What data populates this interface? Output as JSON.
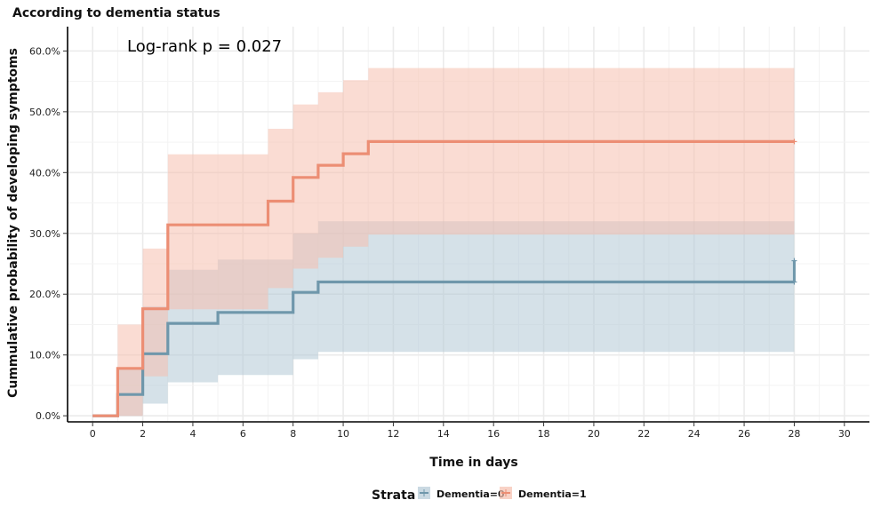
{
  "chart_data": {
    "type": "step",
    "title": "According to dementia status",
    "annotation": "Log-rank p = 0.027",
    "xlabel": "Time in days",
    "ylabel": "Cummulative probability of developing symptoms",
    "xlim": [
      -1,
      31
    ],
    "ylim": [
      -0.01,
      0.64
    ],
    "x_ticks": [
      0,
      2,
      4,
      6,
      8,
      10,
      12,
      14,
      16,
      18,
      20,
      22,
      24,
      26,
      28,
      30
    ],
    "y_ticks": [
      0,
      0.1,
      0.2,
      0.3,
      0.4,
      0.5,
      0.6
    ],
    "y_tick_labels": [
      "0.0%",
      "10.0%",
      "20.0%",
      "30.0%",
      "40.0%",
      "50.0%",
      "60.0%"
    ],
    "grid": true,
    "legend": {
      "title": "Strata",
      "position": "bottom",
      "entries": [
        "Dementia=0",
        "Dementia=1"
      ]
    },
    "series": [
      {
        "name": "Dementia=0",
        "color": "#6f97ab",
        "fill_color": "#b3c9d6",
        "x": [
          0,
          1,
          2,
          3,
          5,
          8,
          9,
          28
        ],
        "y": [
          0,
          0.035,
          0.102,
          0.152,
          0.17,
          0.203,
          0.22,
          0.22
        ],
        "lower": [
          0,
          0,
          0.02,
          0.055,
          0.067,
          0.093,
          0.105,
          0.105
        ],
        "upper": [
          0,
          0.077,
          0.18,
          0.24,
          0.257,
          0.3,
          0.32,
          0.32
        ],
        "censor": [
          {
            "x": 28,
            "y": 0.22
          },
          {
            "x": 28,
            "y": 0.255
          }
        ],
        "end_jump": 0.255
      },
      {
        "name": "Dementia=1",
        "color": "#ec8e74",
        "fill_color": "#f5bfae",
        "x": [
          0,
          1,
          2,
          3,
          7,
          8,
          9,
          10,
          11,
          28
        ],
        "y": [
          0,
          0.078,
          0.176,
          0.314,
          0.353,
          0.392,
          0.412,
          0.431,
          0.451,
          0.451
        ],
        "lower": [
          0,
          0,
          0.065,
          0.175,
          0.21,
          0.242,
          0.26,
          0.278,
          0.298,
          0.298
        ],
        "upper": [
          0,
          0.15,
          0.275,
          0.43,
          0.472,
          0.512,
          0.532,
          0.552,
          0.572,
          0.572
        ],
        "censor": [
          {
            "x": 28,
            "y": 0.451
          }
        ]
      }
    ]
  }
}
